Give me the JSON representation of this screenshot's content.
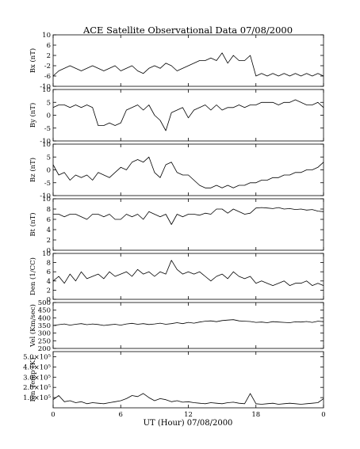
{
  "chart_data": {
    "type": "line",
    "title": "ACE Satellite Observational Data   07/08/2000",
    "xlabel": "UT (Hour)   07/08/2000",
    "x_ticks": [
      "0",
      "6",
      "12",
      "18",
      "0"
    ],
    "xlim": [
      0,
      24
    ],
    "panels": [
      {
        "name": "Bx",
        "ylabel": "Bx (nT)",
        "ylim": [
          -10,
          10
        ],
        "yticks": [
          "10",
          "6",
          "2",
          "-2",
          "-6",
          "-10"
        ],
        "ytick_values": [
          10,
          6,
          2,
          -2,
          -6,
          -10
        ],
        "series": [
          {
            "x": [
              0,
              0.5,
              1,
              1.5,
              2,
              2.5,
              3,
              3.5,
              4,
              4.5,
              5,
              5.5,
              6,
              6.5,
              7,
              7.5,
              8,
              8.5,
              9,
              9.5,
              10,
              10.5,
              11,
              11.5,
              12,
              12.5,
              13,
              13.5,
              14,
              14.5,
              15,
              15.5,
              16,
              16.5,
              17,
              17.5,
              18,
              18.5,
              19,
              19.5,
              20,
              20.5,
              21,
              21.5,
              22,
              22.5,
              23,
              23.5,
              24
            ],
            "y": [
              -6,
              -4,
              -3,
              -2,
              -3,
              -4,
              -3,
              -2,
              -3,
              -4,
              -3,
              -2,
              -4,
              -3,
              -2,
              -4,
              -5,
              -3,
              -2,
              -3,
              -1,
              -2,
              -4,
              -3,
              -2,
              -1,
              0,
              0,
              1,
              0,
              3,
              -1,
              2,
              0,
              0,
              2,
              -6,
              -5,
              -6,
              -5,
              -6,
              -5,
              -6,
              -5,
              -6,
              -5,
              -6,
              -5,
              -6
            ]
          }
        ]
      },
      {
        "name": "By",
        "ylabel": "By (nT)",
        "ylim": [
          -10,
          10
        ],
        "yticks": [
          "10",
          "5",
          "0",
          "-5",
          "-10"
        ],
        "ytick_values": [
          10,
          5,
          0,
          -5,
          -10
        ],
        "series": [
          {
            "x": [
              0,
              0.5,
              1,
              1.5,
              2,
              2.5,
              3,
              3.5,
              4,
              4.5,
              5,
              5.5,
              6,
              6.5,
              7,
              7.5,
              8,
              8.5,
              9,
              9.5,
              10,
              10.5,
              11,
              11.5,
              12,
              12.5,
              13,
              13.5,
              14,
              14.5,
              15,
              15.5,
              16,
              16.5,
              17,
              17.5,
              18,
              18.5,
              19,
              19.5,
              20,
              20.5,
              21,
              21.5,
              22,
              22.5,
              23,
              23.5,
              24
            ],
            "y": [
              3,
              4,
              4,
              3,
              4,
              3,
              4,
              3,
              -4,
              -4,
              -3,
              -4,
              -3,
              2,
              3,
              4,
              2,
              4,
              0,
              -2,
              -6,
              1,
              2,
              3,
              -1,
              2,
              3,
              4,
              2,
              4,
              2,
              3,
              3,
              4,
              3,
              4,
              4,
              5,
              5,
              5,
              4,
              5,
              5,
              6,
              5,
              4,
              4,
              5,
              3
            ]
          }
        ]
      },
      {
        "name": "Bz",
        "ylabel": "Bz (nT)",
        "ylim": [
          -10,
          10
        ],
        "yticks": [
          "10",
          "5",
          "0",
          "-5",
          "-10"
        ],
        "ytick_values": [
          10,
          5,
          0,
          -5,
          -10
        ],
        "series": [
          {
            "x": [
              0,
              0.5,
              1,
              1.5,
              2,
              2.5,
              3,
              3.5,
              4,
              4.5,
              5,
              5.5,
              6,
              6.5,
              7,
              7.5,
              8,
              8.5,
              9,
              9.5,
              10,
              10.5,
              11,
              11.5,
              12,
              12.5,
              13,
              13.5,
              14,
              14.5,
              15,
              15.5,
              16,
              16.5,
              17,
              17.5,
              18,
              18.5,
              19,
              19.5,
              20,
              20.5,
              21,
              21.5,
              22,
              22.5,
              23,
              23.5,
              24
            ],
            "y": [
              2,
              -2,
              -1,
              -4,
              -2,
              -3,
              -2,
              -4,
              -1,
              -2,
              -3,
              -1,
              1,
              0,
              3,
              4,
              3,
              5,
              -1,
              -3,
              2,
              3,
              -1,
              -2,
              -2,
              -4,
              -6,
              -7,
              -7,
              -6,
              -7,
              -6,
              -7,
              -6,
              -6,
              -5,
              -5,
              -4,
              -4,
              -3,
              -3,
              -2,
              -2,
              -1,
              -1,
              0,
              0,
              1,
              3
            ]
          }
        ]
      },
      {
        "name": "Bt",
        "ylabel": "Bt (nT)",
        "ylim": [
          0,
          10
        ],
        "yticks": [
          "10",
          "8",
          "6",
          "4",
          "2",
          "0"
        ],
        "ytick_values": [
          10,
          8,
          6,
          4,
          2,
          0
        ],
        "series": [
          {
            "x": [
              0,
              0.5,
              1,
              1.5,
              2,
              2.5,
              3,
              3.5,
              4,
              4.5,
              5,
              5.5,
              6,
              6.5,
              7,
              7.5,
              8,
              8.5,
              9,
              9.5,
              10,
              10.5,
              11,
              11.5,
              12,
              12.5,
              13,
              13.5,
              14,
              14.5,
              15,
              15.5,
              16,
              16.5,
              17,
              17.5,
              18,
              18.5,
              19,
              19.5,
              20,
              20.5,
              21,
              21.5,
              22,
              22.5,
              23,
              23.5,
              24
            ],
            "y": [
              7,
              7,
              6.5,
              7,
              7,
              6.5,
              6,
              7,
              7,
              6.5,
              7,
              6,
              6,
              7,
              6.5,
              7,
              6,
              7.5,
              7,
              6.5,
              7,
              5,
              7,
              6.5,
              7,
              7,
              6.8,
              7.2,
              7,
              8,
              8,
              7.2,
              8,
              7.5,
              7,
              7.2,
              8.2,
              8.3,
              8.2,
              8.1,
              8.3,
              8,
              8.1,
              7.9,
              8,
              7.8,
              7.9,
              7.6,
              7.5
            ]
          }
        ]
      },
      {
        "name": "Den",
        "ylabel": "Den (1/CC)",
        "ylim": [
          0,
          10
        ],
        "yticks": [
          "10",
          "8",
          "6",
          "4",
          "2",
          "0"
        ],
        "ytick_values": [
          10,
          8,
          6,
          4,
          2,
          0
        ],
        "series": [
          {
            "x": [
              0,
              0.5,
              1,
              1.5,
              2,
              2.5,
              3,
              3.5,
              4,
              4.5,
              5,
              5.5,
              6,
              6.5,
              7,
              7.5,
              8,
              8.5,
              9,
              9.5,
              10,
              10.5,
              11,
              11.5,
              12,
              12.5,
              13,
              13.5,
              14,
              14.5,
              15,
              15.5,
              16,
              16.5,
              17,
              17.5,
              18,
              18.5,
              19,
              19.5,
              20,
              20.5,
              21,
              21.5,
              22,
              22.5,
              23,
              23.5,
              24
            ],
            "y": [
              4,
              5,
              3.5,
              5.5,
              4,
              6,
              4.5,
              5,
              5.5,
              4.5,
              6,
              5,
              5.5,
              6,
              5,
              6.5,
              5.5,
              6,
              5,
              6,
              5.5,
              8.5,
              6.5,
              5.5,
              6,
              5.5,
              6,
              5,
              4,
              5,
              5.5,
              4.5,
              6,
              5,
              4.5,
              5,
              3.5,
              4,
              3.5,
              3,
              3.5,
              4,
              3,
              3.5,
              3.5,
              4,
              3,
              3.5,
              3
            ]
          }
        ]
      },
      {
        "name": "Vel",
        "ylabel": "Vel (Km/sec)",
        "ylim": [
          200,
          500
        ],
        "yticks": [
          "500",
          "450",
          "400",
          "350",
          "300",
          "250",
          "200"
        ],
        "ytick_values": [
          500,
          450,
          400,
          350,
          300,
          250,
          200
        ],
        "series": [
          {
            "x": [
              0,
              0.5,
              1,
              1.5,
              2,
              2.5,
              3,
              3.5,
              4,
              4.5,
              5,
              5.5,
              6,
              6.5,
              7,
              7.5,
              8,
              8.5,
              9,
              9.5,
              10,
              10.5,
              11,
              11.5,
              12,
              12.5,
              13,
              13.5,
              14,
              14.5,
              15,
              15.5,
              16,
              16.5,
              17,
              17.5,
              18,
              18.5,
              19,
              19.5,
              20,
              20.5,
              21,
              21.5,
              22,
              22.5,
              23,
              23.5,
              24
            ],
            "y": [
              350,
              355,
              360,
              352,
              358,
              362,
              355,
              360,
              356,
              350,
              354,
              358,
              352,
              360,
              364,
              358,
              362,
              356,
              360,
              365,
              358,
              362,
              368,
              362,
              370,
              365,
              372,
              378,
              380,
              375,
              382,
              385,
              388,
              380,
              378,
              376,
              370,
              372,
              368,
              375,
              372,
              370,
              368,
              374,
              372,
              376,
              370,
              378,
              375
            ]
          }
        ]
      },
      {
        "name": "Ion Temp",
        "ylabel": "Ion Temp (K)",
        "ylim": [
          0,
          550000
        ],
        "yticks": [
          "5.0×10⁵",
          "4.0×10⁵",
          "3.0×10⁵",
          "2.0×10⁵",
          "1.0×10⁵"
        ],
        "ytick_values": [
          500000,
          400000,
          300000,
          200000,
          100000
        ],
        "series": [
          {
            "x": [
              0,
              0.5,
              1,
              1.5,
              2,
              2.5,
              3,
              3.5,
              4,
              4.5,
              5,
              5.5,
              6,
              6.5,
              7,
              7.5,
              8,
              8.5,
              9,
              9.5,
              10,
              10.5,
              11,
              11.5,
              12,
              12.5,
              13,
              13.5,
              14,
              14.5,
              15,
              15.5,
              16,
              16.5,
              17,
              17.5,
              18,
              18.5,
              19,
              19.5,
              20,
              20.5,
              21,
              21.5,
              22,
              22.5,
              23,
              23.5,
              24
            ],
            "y": [
              80000,
              120000,
              60000,
              70000,
              50000,
              60000,
              40000,
              50000,
              45000,
              40000,
              50000,
              60000,
              70000,
              90000,
              120000,
              110000,
              140000,
              100000,
              70000,
              90000,
              80000,
              60000,
              70000,
              55000,
              60000,
              50000,
              45000,
              40000,
              50000,
              45000,
              40000,
              50000,
              55000,
              45000,
              40000,
              140000,
              40000,
              35000,
              40000,
              45000,
              35000,
              40000,
              45000,
              40000,
              35000,
              40000,
              45000,
              50000,
              90000
            ]
          }
        ]
      }
    ]
  }
}
